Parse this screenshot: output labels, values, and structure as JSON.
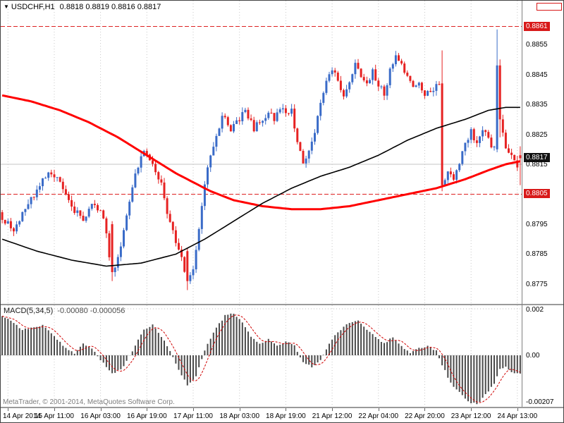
{
  "header": {
    "dropdown_icon": "▼",
    "symbol": "USDCHF,H1",
    "ohlc": "0.8818 0.8819 0.8816 0.8817"
  },
  "indicator_header": {
    "label": "MACD(5,34,5)",
    "values": "-0.00080 -0.000056"
  },
  "footer": {
    "credit": "MetaTrader, © 2001-2014, MetaQuotes Software Corp."
  },
  "colors": {
    "bull": "#3a6bc8",
    "bear": "#e62222",
    "ma_red": "#ff0000",
    "ma_black": "#000000",
    "macd_bar": "#4a4a4a",
    "macd_signal": "#d00000",
    "level": "#dd2222",
    "grid": "#c8c8c8",
    "badge_red": "#d81a1a",
    "badge_black": "#111111"
  },
  "chart_data": [
    {
      "type": "candlestick",
      "title": "USDCHF,H1",
      "symbol": "USDCHF",
      "timeframe": "H1",
      "n_candles": 180,
      "ylim": [
        0.87684,
        0.88696
      ],
      "current_price": 0.8817,
      "grid_price": 0.8815,
      "levels": [
        {
          "price": 0.8861,
          "style": "red-dashed"
        },
        {
          "price": 0.8805,
          "style": "red-dashed"
        }
      ],
      "price_anchors": [
        [
          0,
          0.8797
        ],
        [
          4,
          0.8793
        ],
        [
          8,
          0.88
        ],
        [
          12,
          0.8806
        ],
        [
          16,
          0.8813
        ],
        [
          20,
          0.8809
        ],
        [
          24,
          0.88
        ],
        [
          28,
          0.8797
        ],
        [
          32,
          0.8802
        ],
        [
          35,
          0.8797
        ],
        [
          38,
          0.8779
        ],
        [
          40,
          0.8783
        ],
        [
          43,
          0.8799
        ],
        [
          46,
          0.8811
        ],
        [
          49,
          0.882
        ],
        [
          52,
          0.8816
        ],
        [
          55,
          0.8808
        ],
        [
          58,
          0.8795
        ],
        [
          61,
          0.8787
        ],
        [
          64,
          0.8776
        ],
        [
          66,
          0.878
        ],
        [
          68,
          0.8794
        ],
        [
          70,
          0.8808
        ],
        [
          72,
          0.8818
        ],
        [
          74,
          0.8825
        ],
        [
          76,
          0.8831
        ],
        [
          79,
          0.8827
        ],
        [
          82,
          0.883
        ],
        [
          84,
          0.8833
        ],
        [
          87,
          0.8827
        ],
        [
          90,
          0.883
        ],
        [
          92,
          0.8833
        ],
        [
          94,
          0.883
        ],
        [
          96,
          0.8834
        ],
        [
          98,
          0.8832
        ],
        [
          100,
          0.8833
        ],
        [
          102,
          0.8822
        ],
        [
          104,
          0.8816
        ],
        [
          106,
          0.8819
        ],
        [
          108,
          0.8826
        ],
        [
          110,
          0.8836
        ],
        [
          112,
          0.8843
        ],
        [
          114,
          0.8847
        ],
        [
          116,
          0.8843
        ],
        [
          118,
          0.8838
        ],
        [
          120,
          0.8843
        ],
        [
          122,
          0.8848
        ],
        [
          124,
          0.8844
        ],
        [
          126,
          0.8841
        ],
        [
          128,
          0.8846
        ],
        [
          130,
          0.8842
        ],
        [
          132,
          0.8838
        ],
        [
          134,
          0.8846
        ],
        [
          136,
          0.8852
        ],
        [
          138,
          0.8848
        ],
        [
          140,
          0.8844
        ],
        [
          142,
          0.884
        ],
        [
          144,
          0.8843
        ],
        [
          146,
          0.8838
        ],
        [
          148,
          0.8839
        ],
        [
          150,
          0.8841
        ],
        [
          151,
          0.8842
        ],
        [
          152,
          0.8808
        ],
        [
          154,
          0.8812
        ],
        [
          156,
          0.881
        ],
        [
          158,
          0.8816
        ],
        [
          160,
          0.8822
        ],
        [
          162,
          0.8826
        ],
        [
          164,
          0.8822
        ],
        [
          166,
          0.8827
        ],
        [
          168,
          0.8823
        ],
        [
          170,
          0.882
        ],
        [
          171,
          0.8849
        ],
        [
          172,
          0.883
        ],
        [
          174,
          0.882
        ],
        [
          176,
          0.8818
        ],
        [
          178,
          0.8815
        ],
        [
          179,
          0.8817
        ]
      ],
      "candle_overrides": [
        {
          "i": 38,
          "o": 0.8795,
          "h": 0.8796,
          "l": 0.8776,
          "c": 0.8779
        },
        {
          "i": 64,
          "o": 0.8786,
          "h": 0.8787,
          "l": 0.8773,
          "c": 0.8776
        },
        {
          "i": 152,
          "o": 0.8842,
          "h": 0.8853,
          "l": 0.8806,
          "c": 0.8808
        },
        {
          "i": 171,
          "o": 0.882,
          "h": 0.886,
          "l": 0.8819,
          "c": 0.8848
        },
        {
          "i": 172,
          "o": 0.8848,
          "h": 0.885,
          "l": 0.8824,
          "c": 0.883
        },
        {
          "i": 179,
          "o": 0.8818,
          "h": 0.8821,
          "l": 0.8808,
          "c": 0.8817
        }
      ],
      "ma_red_anchors": [
        [
          0,
          0.8838
        ],
        [
          10,
          0.8836
        ],
        [
          20,
          0.8833
        ],
        [
          30,
          0.8829
        ],
        [
          40,
          0.8824
        ],
        [
          50,
          0.8818
        ],
        [
          60,
          0.8812
        ],
        [
          66,
          0.8809
        ],
        [
          72,
          0.8806
        ],
        [
          80,
          0.8803
        ],
        [
          90,
          0.8801
        ],
        [
          100,
          0.88
        ],
        [
          110,
          0.88
        ],
        [
          120,
          0.8801
        ],
        [
          130,
          0.8803
        ],
        [
          140,
          0.8805
        ],
        [
          150,
          0.8807
        ],
        [
          160,
          0.881
        ],
        [
          168,
          0.8813
        ],
        [
          174,
          0.8815
        ],
        [
          179,
          0.8816
        ]
      ],
      "ma_black_anchors": [
        [
          0,
          0.879
        ],
        [
          12,
          0.8786
        ],
        [
          24,
          0.8783
        ],
        [
          36,
          0.8781
        ],
        [
          48,
          0.8782
        ],
        [
          60,
          0.8785
        ],
        [
          70,
          0.879
        ],
        [
          80,
          0.8796
        ],
        [
          90,
          0.8802
        ],
        [
          100,
          0.8807
        ],
        [
          110,
          0.8811
        ],
        [
          120,
          0.8814
        ],
        [
          130,
          0.8818
        ],
        [
          140,
          0.8823
        ],
        [
          150,
          0.8827
        ],
        [
          160,
          0.883
        ],
        [
          168,
          0.8833
        ],
        [
          174,
          0.8834
        ],
        [
          179,
          0.8834
        ]
      ],
      "y_ticks": [
        {
          "label": "0.8861",
          "value": 0.8861,
          "style": "red"
        },
        {
          "label": "0.8855",
          "value": 0.8855,
          "style": "plain"
        },
        {
          "label": "0.8845",
          "value": 0.8845,
          "style": "plain"
        },
        {
          "label": "0.8835",
          "value": 0.8835,
          "style": "plain"
        },
        {
          "label": "0.8825",
          "value": 0.8825,
          "style": "plain"
        },
        {
          "label": "0.8817",
          "value": 0.8817,
          "style": "black"
        },
        {
          "label": "0.8815",
          "value": 0.8815,
          "style": "plain"
        },
        {
          "label": "0.8805",
          "value": 0.8805,
          "style": "red"
        },
        {
          "label": "0.8795",
          "value": 0.8795,
          "style": "plain"
        },
        {
          "label": "0.8785",
          "value": 0.8785,
          "style": "plain"
        },
        {
          "label": "0.8775",
          "value": 0.8775,
          "style": "plain"
        }
      ],
      "x_ticks": [
        {
          "label": "14 Apr 2014",
          "i": 2
        },
        {
          "label": "15 Apr 11:00",
          "i": 18
        },
        {
          "label": "16 Apr 03:00",
          "i": 34
        },
        {
          "label": "16 Apr 19:00",
          "i": 50
        },
        {
          "label": "17 Apr 11:00",
          "i": 66
        },
        {
          "label": "18 Apr 03:00",
          "i": 82
        },
        {
          "label": "18 Apr 19:00",
          "i": 98
        },
        {
          "label": "21 Apr 12:00",
          "i": 114
        },
        {
          "label": "22 Apr 04:00",
          "i": 130
        },
        {
          "label": "22 Apr 20:00",
          "i": 146
        },
        {
          "label": "23 Apr 12:00",
          "i": 162
        },
        {
          "label": "24 Apr 13:00",
          "i": 178
        }
      ]
    },
    {
      "type": "macd-histogram",
      "label": "MACD(5,34,5)",
      "current_values": [
        -0.0008,
        -5.6e-05
      ],
      "ylim": [
        -0.0022121,
        0.0021515
      ],
      "anchors": [
        [
          0,
          0.0017
        ],
        [
          3,
          0.0015
        ],
        [
          7,
          0.0011
        ],
        [
          11,
          0.0012
        ],
        [
          14,
          0.0013
        ],
        [
          18,
          0.0008
        ],
        [
          22,
          0.0003
        ],
        [
          25,
          0.0001
        ],
        [
          28,
          0.0005
        ],
        [
          31,
          0.0003
        ],
        [
          34,
          -0.0002
        ],
        [
          38,
          -0.0008
        ],
        [
          42,
          -0.0005
        ],
        [
          45,
          0.0002
        ],
        [
          49,
          0.0011
        ],
        [
          52,
          0.0013
        ],
        [
          55,
          0.0008
        ],
        [
          58,
          0.0002
        ],
        [
          61,
          -0.0006
        ],
        [
          64,
          -0.0013
        ],
        [
          67,
          -0.0009
        ],
        [
          70,
          0.0002
        ],
        [
          73,
          0.001
        ],
        [
          77,
          0.0017
        ],
        [
          80,
          0.0018
        ],
        [
          83,
          0.0014
        ],
        [
          86,
          0.0008
        ],
        [
          89,
          0.0005
        ],
        [
          92,
          0.0007
        ],
        [
          95,
          0.0004
        ],
        [
          98,
          0.0006
        ],
        [
          101,
          0.0004
        ],
        [
          104,
          -0.0003
        ],
        [
          107,
          -0.0005
        ],
        [
          110,
          -0.0002
        ],
        [
          113,
          0.0005
        ],
        [
          116,
          0.001
        ],
        [
          120,
          0.0014
        ],
        [
          123,
          0.0015
        ],
        [
          126,
          0.0011
        ],
        [
          129,
          0.0008
        ],
        [
          132,
          0.0005
        ],
        [
          135,
          0.0008
        ],
        [
          138,
          0.0004
        ],
        [
          141,
          0.0001
        ],
        [
          144,
          0.0003
        ],
        [
          147,
          0.0004
        ],
        [
          150,
          0.0002
        ],
        [
          152,
          -0.0004
        ],
        [
          155,
          -0.0012
        ],
        [
          158,
          -0.0016
        ],
        [
          161,
          -0.002
        ],
        [
          164,
          -0.0021
        ],
        [
          167,
          -0.0017
        ],
        [
          170,
          -0.0012
        ],
        [
          172,
          -0.0006
        ],
        [
          174,
          -0.0005
        ],
        [
          176,
          -0.0007
        ],
        [
          178,
          -0.0008
        ],
        [
          179,
          -0.0008
        ]
      ],
      "y_ticks": [
        {
          "label": "0.002",
          "value": 0.002
        },
        {
          "label": "0.00",
          "value": 0
        },
        {
          "label": "-0.00207",
          "value": -0.00207
        }
      ]
    }
  ]
}
